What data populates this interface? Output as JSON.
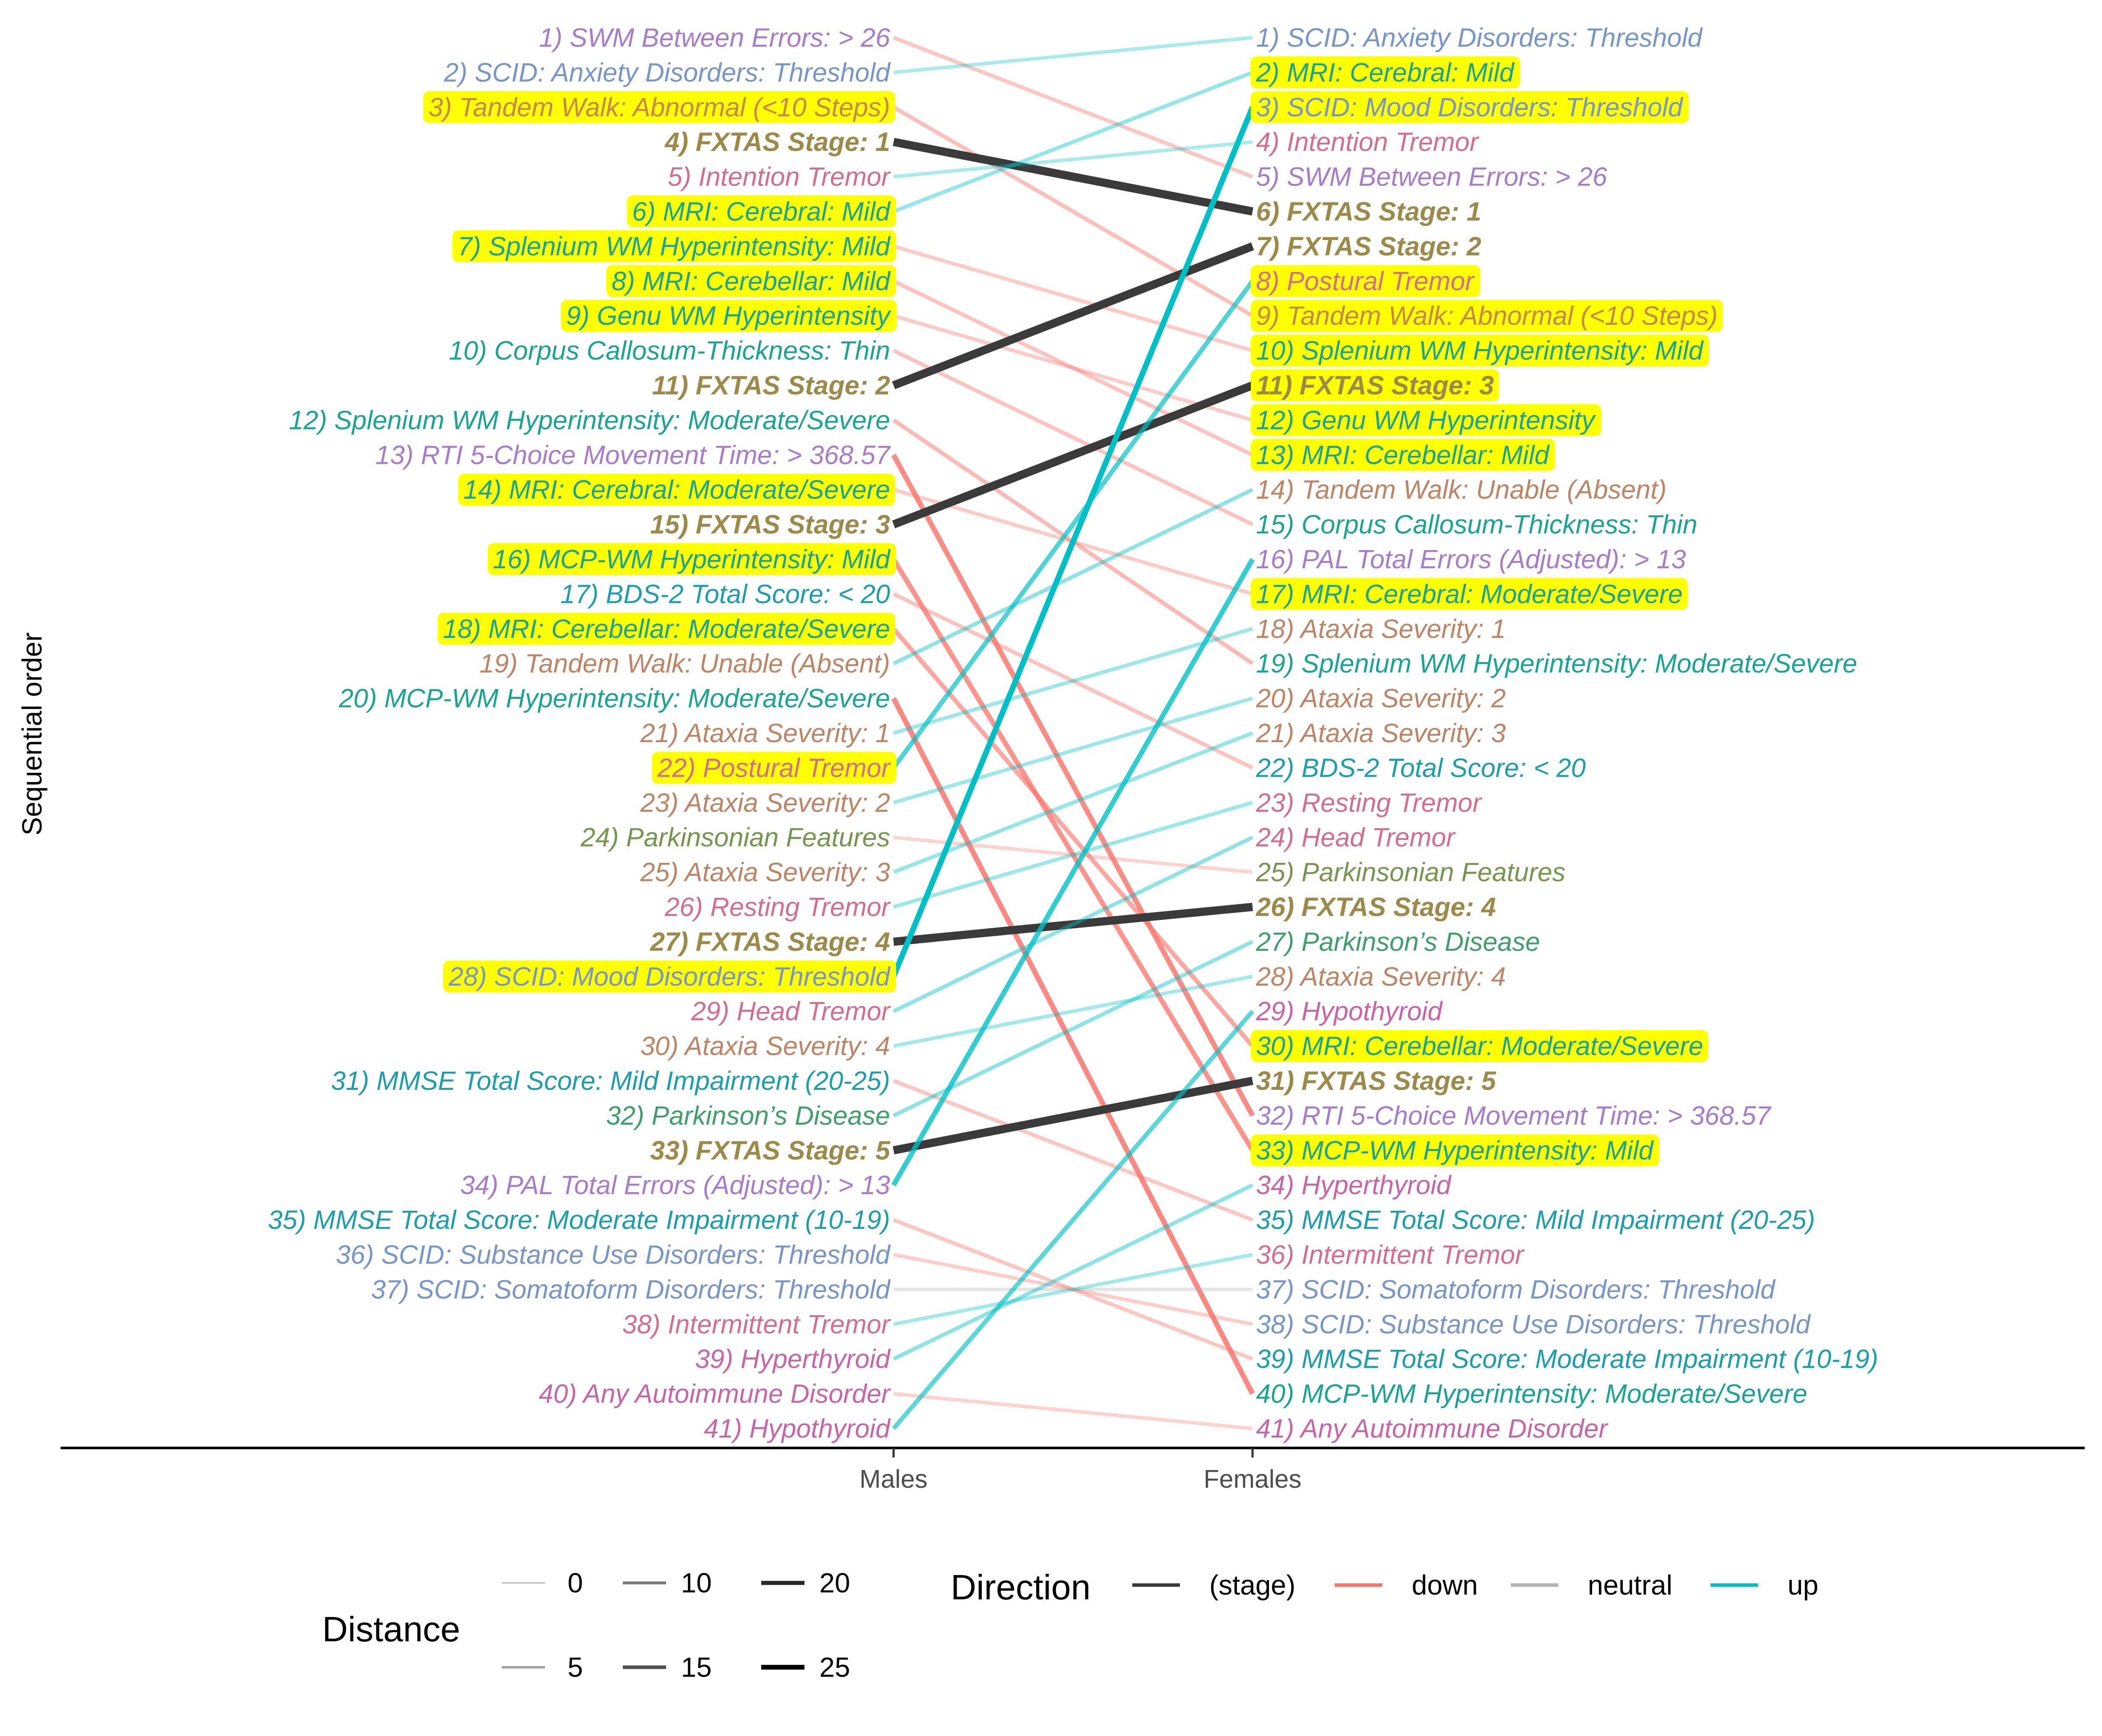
{
  "chart_data": {
    "type": "slope",
    "y_axis_label": "Sequential order",
    "x_categories": [
      "Males",
      "Females"
    ],
    "colors": {
      "stage": "#3a3a3a",
      "down": "#f8766d",
      "neutral": "#b3b3b3",
      "up": "#00bfc4",
      "highlight": "#ffff00",
      "stage_text": "#9c8a4a"
    },
    "males": [
      {
        "label": "1) SWM Between Errors: > 26",
        "color": "#a77ccb"
      },
      {
        "label": "2) SCID: Anxiety Disorders: Threshold",
        "color": "#7895c8"
      },
      {
        "label": "3) Tandem Walk: Abnormal (<10 Steps)",
        "color": "#c6884f",
        "highlight": true
      },
      {
        "label": "4) FXTAS Stage: 1",
        "color": "#9c8a4a",
        "stage": true
      },
      {
        "label": "5) Intention Tremor",
        "color": "#d36e8b"
      },
      {
        "label": "6) MRI: Cerebral: Mild",
        "color": "#1ba394",
        "highlight": true
      },
      {
        "label": "7) Splenium WM Hyperintensity: Mild",
        "color": "#1ba394",
        "highlight": true
      },
      {
        "label": "8) MRI: Cerebellar: Mild",
        "color": "#1ba394",
        "highlight": true
      },
      {
        "label": "9) Genu WM Hyperintensity",
        "color": "#1ba394",
        "highlight": true
      },
      {
        "label": "10) Corpus Callosum-Thickness: Thin",
        "color": "#1ba394"
      },
      {
        "label": "11) FXTAS Stage: 2",
        "color": "#9c8a4a",
        "stage": true
      },
      {
        "label": "12) Splenium WM Hyperintensity: Moderate/Severe",
        "color": "#1ba394"
      },
      {
        "label": "13) RTI 5-Choice Movement Time: > 368.57",
        "color": "#a77ccb"
      },
      {
        "label": "14) MRI: Cerebral: Moderate/Severe",
        "color": "#1ba394",
        "highlight": true
      },
      {
        "label": "15) FXTAS Stage: 3",
        "color": "#9c8a4a",
        "stage": true
      },
      {
        "label": "16) MCP-WM Hyperintensity: Mild",
        "color": "#1ba394",
        "highlight": true
      },
      {
        "label": "17) BDS-2 Total Score: < 20",
        "color": "#1e9dad"
      },
      {
        "label": "18) MRI: Cerebellar: Moderate/Severe",
        "color": "#1ba394",
        "highlight": true
      },
      {
        "label": "19) Tandem Walk: Unable (Absent)",
        "color": "#bd8466"
      },
      {
        "label": "20) MCP-WM Hyperintensity: Moderate/Severe",
        "color": "#1ba394"
      },
      {
        "label": "21) Ataxia Severity: 1",
        "color": "#bd8466"
      },
      {
        "label": "22) Postural Tremor",
        "color": "#d36e8b",
        "highlight": true
      },
      {
        "label": "23) Ataxia Severity: 2",
        "color": "#bd8466"
      },
      {
        "label": "24) Parkinsonian Features",
        "color": "#76954f"
      },
      {
        "label": "25) Ataxia Severity: 3",
        "color": "#bd8466"
      },
      {
        "label": "26) Resting Tremor",
        "color": "#d36e8b"
      },
      {
        "label": "27) FXTAS Stage: 4",
        "color": "#9c8a4a",
        "stage": true
      },
      {
        "label": "28) SCID: Mood Disorders: Threshold",
        "color": "#7895c8",
        "highlight": true
      },
      {
        "label": "29) Head Tremor",
        "color": "#d36e8b"
      },
      {
        "label": "30) Ataxia Severity: 4",
        "color": "#bd8466"
      },
      {
        "label": "31) MMSE Total Score: Mild Impairment (20-25)",
        "color": "#1e9dad"
      },
      {
        "label": "32) Parkinson’s Disease",
        "color": "#3f9e6b"
      },
      {
        "label": "33) FXTAS Stage: 5",
        "color": "#9c8a4a",
        "stage": true
      },
      {
        "label": "34) PAL Total Errors (Adjusted): > 13",
        "color": "#a77ccb"
      },
      {
        "label": "35) MMSE Total Score: Moderate Impairment (10-19)",
        "color": "#1e9dad"
      },
      {
        "label": "36) SCID: Substance Use Disorders: Threshold",
        "color": "#7895c8"
      },
      {
        "label": "37) SCID: Somatoform Disorders: Threshold",
        "color": "#7895c8"
      },
      {
        "label": "38) Intermittent Tremor",
        "color": "#d36e8b"
      },
      {
        "label": "39) Hyperthyroid",
        "color": "#c865a8"
      },
      {
        "label": "40) Any Autoimmune Disorder",
        "color": "#c865a8"
      },
      {
        "label": "41) Hypothyroid",
        "color": "#c865a8"
      }
    ],
    "females": [
      {
        "label": "1) SCID: Anxiety Disorders: Threshold",
        "color": "#7895c8"
      },
      {
        "label": "2) MRI: Cerebral: Mild",
        "color": "#1ba394",
        "highlight": true
      },
      {
        "label": "3) SCID: Mood Disorders: Threshold",
        "color": "#7895c8",
        "highlight": true
      },
      {
        "label": "4) Intention Tremor",
        "color": "#d36e8b"
      },
      {
        "label": "5) SWM Between Errors: > 26",
        "color": "#a77ccb"
      },
      {
        "label": "6) FXTAS Stage: 1",
        "color": "#9c8a4a",
        "stage": true
      },
      {
        "label": "7) FXTAS Stage: 2",
        "color": "#9c8a4a",
        "stage": true
      },
      {
        "label": "8) Postural Tremor",
        "color": "#d36e8b",
        "highlight": true
      },
      {
        "label": "9) Tandem Walk: Abnormal (<10 Steps)",
        "color": "#c6884f",
        "highlight": true
      },
      {
        "label": "10) Splenium WM Hyperintensity: Mild",
        "color": "#1ba394",
        "highlight": true
      },
      {
        "label": "11) FXTAS Stage: 3",
        "color": "#9c8a4a",
        "stage": true,
        "highlight": true
      },
      {
        "label": "12) Genu WM Hyperintensity",
        "color": "#1ba394",
        "highlight": true
      },
      {
        "label": "13) MRI: Cerebellar: Mild",
        "color": "#1ba394",
        "highlight": true
      },
      {
        "label": "14) Tandem Walk: Unable (Absent)",
        "color": "#bd8466"
      },
      {
        "label": "15) Corpus Callosum-Thickness: Thin",
        "color": "#1ba394"
      },
      {
        "label": "16) PAL Total Errors (Adjusted): > 13",
        "color": "#a77ccb"
      },
      {
        "label": "17) MRI: Cerebral: Moderate/Severe",
        "color": "#1ba394",
        "highlight": true
      },
      {
        "label": "18) Ataxia Severity: 1",
        "color": "#bd8466"
      },
      {
        "label": "19) Splenium WM Hyperintensity: Moderate/Severe",
        "color": "#1ba394"
      },
      {
        "label": "20) Ataxia Severity: 2",
        "color": "#bd8466"
      },
      {
        "label": "21) Ataxia Severity: 3",
        "color": "#bd8466"
      },
      {
        "label": "22) BDS-2 Total Score: < 20",
        "color": "#1e9dad"
      },
      {
        "label": "23) Resting Tremor",
        "color": "#d36e8b"
      },
      {
        "label": "24) Head Tremor",
        "color": "#d36e8b"
      },
      {
        "label": "25) Parkinsonian Features",
        "color": "#76954f"
      },
      {
        "label": "26) FXTAS Stage: 4",
        "color": "#9c8a4a",
        "stage": true
      },
      {
        "label": "27) Parkinson’s Disease",
        "color": "#3f9e6b"
      },
      {
        "label": "28) Ataxia Severity: 4",
        "color": "#bd8466"
      },
      {
        "label": "29) Hypothyroid",
        "color": "#c865a8"
      },
      {
        "label": "30) MRI: Cerebellar: Moderate/Severe",
        "color": "#1ba394",
        "highlight": true
      },
      {
        "label": "31) FXTAS Stage: 5",
        "color": "#9c8a4a",
        "stage": true
      },
      {
        "label": "32) RTI 5-Choice Movement Time: > 368.57",
        "color": "#a77ccb"
      },
      {
        "label": "33) MCP-WM Hyperintensity: Mild",
        "color": "#1ba394",
        "highlight": true
      },
      {
        "label": "34) Hyperthyroid",
        "color": "#c865a8"
      },
      {
        "label": "35) MMSE Total Score: Mild Impairment (20-25)",
        "color": "#1e9dad"
      },
      {
        "label": "36) Intermittent Tremor",
        "color": "#d36e8b"
      },
      {
        "label": "37) SCID: Somatoform Disorders: Threshold",
        "color": "#7895c8"
      },
      {
        "label": "38) SCID: Substance Use Disorders: Threshold",
        "color": "#7895c8"
      },
      {
        "label": "39) MMSE Total Score: Moderate Impairment (10-19)",
        "color": "#1e9dad"
      },
      {
        "label": "40) MCP-WM Hyperintensity: Moderate/Severe",
        "color": "#1ba394"
      },
      {
        "label": "41) Any Autoimmune Disorder",
        "color": "#c865a8"
      }
    ],
    "legend": {
      "position": "bottom",
      "distance_title": "Distance",
      "distance_values": [
        0,
        5,
        10,
        15,
        20,
        25
      ],
      "direction_title": "Direction",
      "direction_values": [
        "(stage)",
        "down",
        "neutral",
        "up"
      ]
    },
    "grid": false
  }
}
